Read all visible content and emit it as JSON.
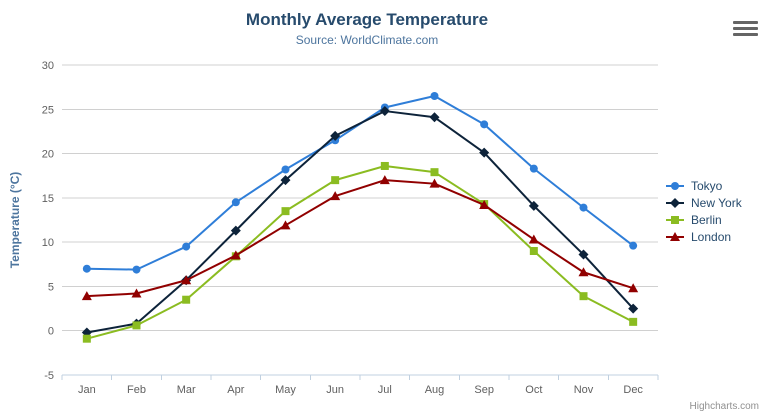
{
  "chart": {
    "title": "Monthly Average Temperature",
    "subtitle": "Source: WorldClimate.com",
    "credits": "Highcharts.com"
  },
  "chart_data": {
    "type": "line",
    "title": "Monthly Average Temperature",
    "subtitle": "Source: WorldClimate.com",
    "categories": [
      "Jan",
      "Feb",
      "Mar",
      "Apr",
      "May",
      "Jun",
      "Jul",
      "Aug",
      "Sep",
      "Oct",
      "Nov",
      "Dec"
    ],
    "series": [
      {
        "name": "Tokyo",
        "color": "#2f7ed8",
        "marker": "circle",
        "values": [
          7.0,
          6.9,
          9.5,
          14.5,
          18.2,
          21.5,
          25.2,
          26.5,
          23.3,
          18.3,
          13.9,
          9.6
        ]
      },
      {
        "name": "New York",
        "color": "#0d233a",
        "marker": "diamond",
        "values": [
          -0.2,
          0.8,
          5.7,
          11.3,
          17.0,
          22.0,
          24.8,
          24.1,
          20.1,
          14.1,
          8.6,
          2.5
        ]
      },
      {
        "name": "Berlin",
        "color": "#8bbc21",
        "marker": "square",
        "values": [
          -0.9,
          0.6,
          3.5,
          8.4,
          13.5,
          17.0,
          18.6,
          17.9,
          14.3,
          9.0,
          3.9,
          1.0
        ]
      },
      {
        "name": "London",
        "color": "#910000",
        "marker": "triangle",
        "values": [
          3.9,
          4.2,
          5.7,
          8.5,
          11.9,
          15.2,
          17.0,
          16.6,
          14.2,
          10.3,
          6.6,
          4.8
        ]
      }
    ],
    "xlabel": "",
    "ylabel": "Temperature (°C)",
    "ylim": [
      -5,
      30
    ],
    "ytick": 5,
    "grid": "horizontal",
    "legend_position": "right",
    "colors": {
      "grid_line": "#d0d0d0",
      "axis_line": "#c0d0e0",
      "axis_label": "#606060",
      "title": "#274b6d",
      "subtitle": "#4d759e",
      "legend_text": "#274b6d",
      "credits_text": "#909090"
    }
  }
}
